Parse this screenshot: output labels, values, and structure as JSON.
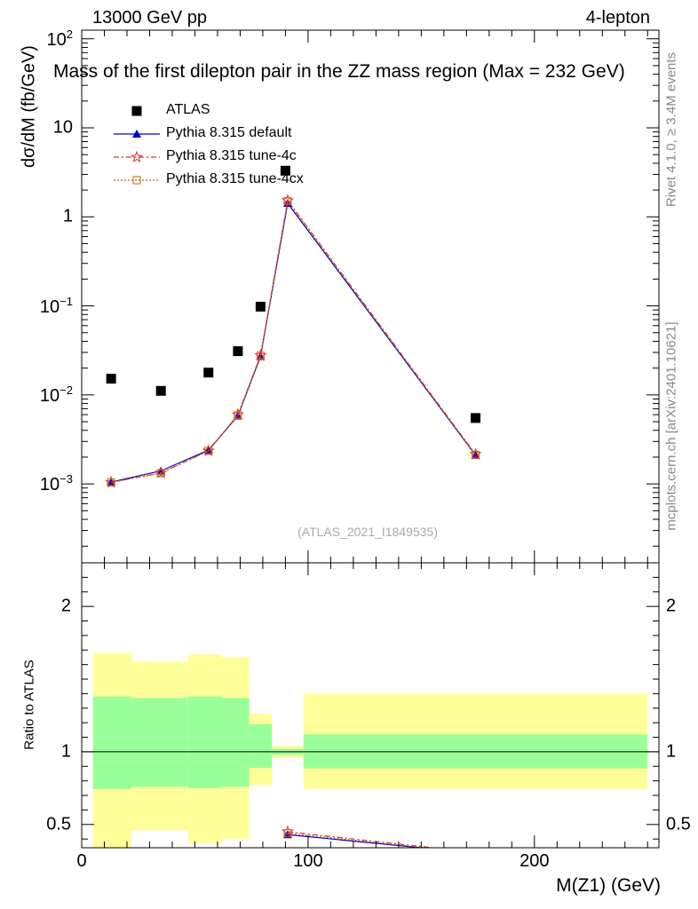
{
  "header": {
    "left": "13000 GeV pp",
    "right": "4-lepton",
    "title": "Mass of the first dilepton pair in the ZZ mass region (Max = 232 GeV)"
  },
  "side": {
    "rivet": "Rivet 4.1.0, ≥ 3.4M events",
    "mcplots": "mcplots.cern.ch [arXiv:2401.10621]"
  },
  "watermark": "(ATLAS_2021_I1849535)",
  "colors": {
    "data": "#000000",
    "default": "#0000cc",
    "tune4c": "#e03030",
    "tune4cx": "#cc6600",
    "band_inner": "#99ff99",
    "band_outer": "#ffff99"
  },
  "chart_data": {
    "type": "line",
    "title": "Mass of the first dilepton pair in the ZZ mass region (Max = 232 GeV)",
    "xlabel": "M(Z1) (GeV)",
    "ylabel": "dσ/dM (fb/GeV)",
    "ratio_ylabel": "Ratio to ATLAS",
    "xlim": [
      0,
      255
    ],
    "ylim": [
      0.00013,
      125
    ],
    "ratio_ylim": [
      0.34,
      2.3
    ],
    "x_ticks": [
      {
        "value": 0,
        "label": "0"
      },
      {
        "value": 100,
        "label": "100"
      },
      {
        "value": 200,
        "label": "200"
      }
    ],
    "y_ticks": [
      {
        "value": 0.001,
        "base": "10",
        "exp": "−3"
      },
      {
        "value": 0.01,
        "base": "10",
        "exp": "−2"
      },
      {
        "value": 0.1,
        "base": "10",
        "exp": "−1"
      },
      {
        "value": 1,
        "base": "1",
        "exp": ""
      },
      {
        "value": 10,
        "base": "10",
        "exp": ""
      },
      {
        "value": 100,
        "base": "10",
        "exp": "2"
      }
    ],
    "ratio_ticks": [
      {
        "value": 0.5,
        "label": "0.5"
      },
      {
        "value": 1,
        "label": "1"
      },
      {
        "value": 2,
        "label": "2"
      }
    ],
    "legend": [
      {
        "key": "data",
        "label": "ATLAS"
      },
      {
        "key": "default",
        "label": "Pythia 8.315 default"
      },
      {
        "key": "tune4c",
        "label": "Pythia 8.315 tune-4c"
      },
      {
        "key": "tune4cx",
        "label": "Pythia 8.315 tune-4cx"
      }
    ],
    "data": {
      "x": [
        13,
        35,
        56,
        69,
        79,
        90,
        174
      ],
      "y": [
        0.0152,
        0.0111,
        0.0178,
        0.031,
        0.098,
        3.3,
        0.0055
      ]
    },
    "series": [
      {
        "name": "Pythia 8.315 default",
        "key": "default",
        "x": [
          13,
          35,
          56,
          69,
          79,
          91,
          174
        ],
        "y": [
          0.00105,
          0.0014,
          0.0024,
          0.0058,
          0.027,
          1.42,
          0.0021
        ]
      },
      {
        "name": "Pythia 8.315 tune-4c",
        "key": "tune4c",
        "x": [
          13,
          35,
          56,
          69,
          79,
          91,
          174
        ],
        "y": [
          0.00104,
          0.00133,
          0.00235,
          0.006,
          0.0278,
          1.53,
          0.00215
        ]
      },
      {
        "name": "Pythia 8.315 tune-4cx",
        "key": "tune4cx",
        "x": [
          13,
          35,
          56,
          69,
          79,
          91,
          174
        ],
        "y": [
          0.00104,
          0.00132,
          0.00235,
          0.0059,
          0.0276,
          1.5,
          0.00212
        ]
      }
    ],
    "ratio_series": [
      {
        "key": "default",
        "x": [
          91,
          150
        ],
        "y": [
          0.43,
          0.34
        ]
      },
      {
        "key": "tune4c",
        "x": [
          91,
          155
        ],
        "y": [
          0.45,
          0.34
        ]
      },
      {
        "key": "tune4cx",
        "x": [
          91,
          152
        ],
        "y": [
          0.44,
          0.34
        ]
      }
    ],
    "bands": [
      {
        "x0": 5,
        "x1": 22,
        "inner": [
          0.745,
          1.38
        ],
        "outer": [
          0.3,
          1.68
        ]
      },
      {
        "x0": 22,
        "x1": 47,
        "inner": [
          0.76,
          1.37
        ],
        "outer": [
          0.46,
          1.62
        ]
      },
      {
        "x0": 47,
        "x1": 62,
        "inner": [
          0.75,
          1.38
        ],
        "outer": [
          0.37,
          1.67
        ]
      },
      {
        "x0": 62,
        "x1": 74,
        "inner": [
          0.76,
          1.37
        ],
        "outer": [
          0.4,
          1.65
        ]
      },
      {
        "x0": 74,
        "x1": 84,
        "inner": [
          0.89,
          1.19
        ],
        "outer": [
          0.77,
          1.26
        ]
      },
      {
        "x0": 84,
        "x1": 98,
        "inner": [
          0.98,
          1.02
        ],
        "outer": [
          0.96,
          1.04
        ]
      },
      {
        "x0": 98,
        "x1": 250,
        "inner": [
          0.885,
          1.12
        ],
        "outer": [
          0.745,
          1.4
        ]
      }
    ]
  }
}
